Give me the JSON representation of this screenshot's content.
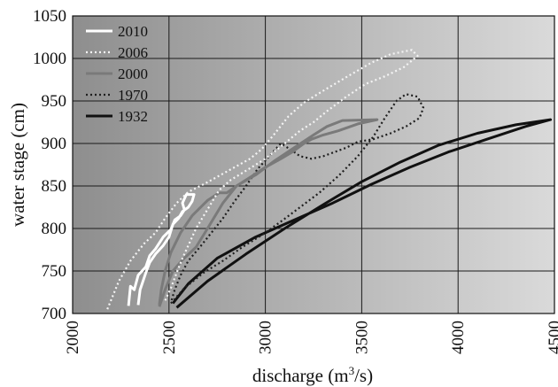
{
  "chart_data": {
    "type": "line",
    "xlabel_main": "discharge (m",
    "xlabel_sup": "3",
    "xlabel_tail": "/s)",
    "ylabel": "water stage (cm)",
    "xlim": [
      2000,
      4500
    ],
    "ylim": [
      700,
      1050
    ],
    "xticks": [
      "2000",
      "2500",
      "3000",
      "3500",
      "4000",
      "4500"
    ],
    "yticks": [
      "700",
      "750",
      "800",
      "850",
      "900",
      "950",
      "1000",
      "1050"
    ],
    "grid": true,
    "legend_position": "top-left",
    "series": [
      {
        "name": "2010",
        "color": "#ffffff",
        "dash": "solid",
        "width": 3,
        "points": [
          [
            2290,
            709
          ],
          [
            2300,
            732
          ],
          [
            2320,
            728
          ],
          [
            2340,
            745
          ],
          [
            2380,
            755
          ],
          [
            2400,
            768
          ],
          [
            2430,
            776
          ],
          [
            2470,
            790
          ],
          [
            2510,
            799
          ],
          [
            2530,
            810
          ],
          [
            2560,
            815
          ],
          [
            2580,
            822
          ],
          [
            2570,
            830
          ],
          [
            2590,
            840
          ],
          [
            2630,
            840
          ],
          [
            2620,
            832
          ],
          [
            2600,
            825
          ],
          [
            2570,
            820
          ],
          [
            2550,
            812
          ],
          [
            2520,
            805
          ],
          [
            2500,
            790
          ],
          [
            2470,
            780
          ],
          [
            2430,
            770
          ],
          [
            2400,
            760
          ],
          [
            2380,
            748
          ],
          [
            2350,
            728
          ],
          [
            2340,
            710
          ]
        ]
      },
      {
        "name": "2006",
        "color": "#f4f4f4",
        "dash": "2,3",
        "width": 2.2,
        "points": [
          [
            2180,
            705
          ],
          [
            2240,
            738
          ],
          [
            2300,
            762
          ],
          [
            2370,
            782
          ],
          [
            2430,
            795
          ],
          [
            2480,
            812
          ],
          [
            2540,
            830
          ],
          [
            2600,
            843
          ],
          [
            2680,
            852
          ],
          [
            2760,
            862
          ],
          [
            2840,
            872
          ],
          [
            2920,
            882
          ],
          [
            2980,
            893
          ],
          [
            3050,
            912
          ],
          [
            3120,
            932
          ],
          [
            3200,
            948
          ],
          [
            3300,
            962
          ],
          [
            3420,
            978
          ],
          [
            3550,
            995
          ],
          [
            3650,
            1005
          ],
          [
            3760,
            1010
          ],
          [
            3790,
            1003
          ],
          [
            3720,
            990
          ],
          [
            3620,
            979
          ],
          [
            3520,
            970
          ],
          [
            3420,
            955
          ],
          [
            3320,
            938
          ],
          [
            3250,
            925
          ],
          [
            3180,
            915
          ],
          [
            3100,
            900
          ],
          [
            3000,
            882
          ],
          [
            2900,
            868
          ],
          [
            2820,
            857
          ],
          [
            2760,
            845
          ],
          [
            2720,
            830
          ],
          [
            2680,
            815
          ],
          [
            2640,
            800
          ],
          [
            2600,
            780
          ],
          [
            2570,
            765
          ],
          [
            2540,
            748
          ],
          [
            2510,
            730
          ],
          [
            2480,
            715
          ]
        ]
      },
      {
        "name": "2000",
        "color": "#7a7a7a",
        "dash": "solid",
        "width": 3,
        "points": [
          [
            2450,
            708
          ],
          [
            2480,
            728
          ],
          [
            2520,
            750
          ],
          [
            2570,
            763
          ],
          [
            2640,
            778
          ],
          [
            2700,
            800
          ],
          [
            2780,
            830
          ],
          [
            2850,
            850
          ],
          [
            2950,
            863
          ],
          [
            3050,
            880
          ],
          [
            3150,
            895
          ],
          [
            3250,
            910
          ],
          [
            3320,
            920
          ],
          [
            3400,
            927
          ],
          [
            3580,
            928
          ],
          [
            3480,
            923
          ],
          [
            3380,
            915
          ],
          [
            3300,
            910
          ],
          [
            3240,
            905
          ],
          [
            3200,
            900
          ],
          [
            3140,
            890
          ],
          [
            3080,
            882
          ],
          [
            3000,
            872
          ],
          [
            2920,
            860
          ],
          [
            2850,
            850
          ],
          [
            2800,
            842
          ],
          [
            2760,
            842
          ],
          [
            2700,
            833
          ],
          [
            2620,
            815
          ],
          [
            2560,
            795
          ],
          [
            2510,
            772
          ],
          [
            2480,
            750
          ],
          [
            2460,
            728
          ],
          [
            2450,
            710
          ]
        ]
      },
      {
        "name": "1970",
        "color": "#1f1f1f",
        "dash": "2,3",
        "width": 2.2,
        "points": [
          [
            2510,
            712
          ],
          [
            2580,
            730
          ],
          [
            2680,
            748
          ],
          [
            2780,
            762
          ],
          [
            2880,
            778
          ],
          [
            2980,
            792
          ],
          [
            3080,
            808
          ],
          [
            3180,
            825
          ],
          [
            3280,
            842
          ],
          [
            3380,
            862
          ],
          [
            3480,
            885
          ],
          [
            3560,
            908
          ],
          [
            3620,
            930
          ],
          [
            3680,
            950
          ],
          [
            3730,
            958
          ],
          [
            3790,
            955
          ],
          [
            3820,
            942
          ],
          [
            3800,
            930
          ],
          [
            3730,
            920
          ],
          [
            3650,
            912
          ],
          [
            3560,
            905
          ],
          [
            3480,
            902
          ],
          [
            3420,
            895
          ],
          [
            3360,
            890
          ],
          [
            3300,
            885
          ],
          [
            3240,
            882
          ],
          [
            3180,
            885
          ],
          [
            3130,
            893
          ],
          [
            3080,
            900
          ],
          [
            3020,
            885
          ],
          [
            2960,
            870
          ],
          [
            2900,
            850
          ],
          [
            2840,
            832
          ],
          [
            2780,
            812
          ],
          [
            2720,
            795
          ],
          [
            2660,
            778
          ],
          [
            2600,
            762
          ],
          [
            2560,
            745
          ],
          [
            2530,
            728
          ],
          [
            2510,
            713
          ]
        ]
      },
      {
        "name": "1932",
        "color": "#111111",
        "dash": "solid",
        "width": 3,
        "points": [
          [
            2540,
            707
          ],
          [
            2700,
            738
          ],
          [
            2900,
            770
          ],
          [
            3100,
            800
          ],
          [
            3300,
            828
          ],
          [
            3500,
            855
          ],
          [
            3700,
            878
          ],
          [
            3900,
            898
          ],
          [
            4100,
            912
          ],
          [
            4300,
            922
          ],
          [
            4480,
            928
          ],
          [
            4350,
            920
          ],
          [
            4150,
            905
          ],
          [
            3950,
            890
          ],
          [
            3750,
            872
          ],
          [
            3550,
            852
          ],
          [
            3350,
            830
          ],
          [
            3150,
            810
          ],
          [
            2950,
            790
          ],
          [
            2750,
            765
          ],
          [
            2600,
            735
          ],
          [
            2520,
            712
          ]
        ]
      }
    ]
  }
}
